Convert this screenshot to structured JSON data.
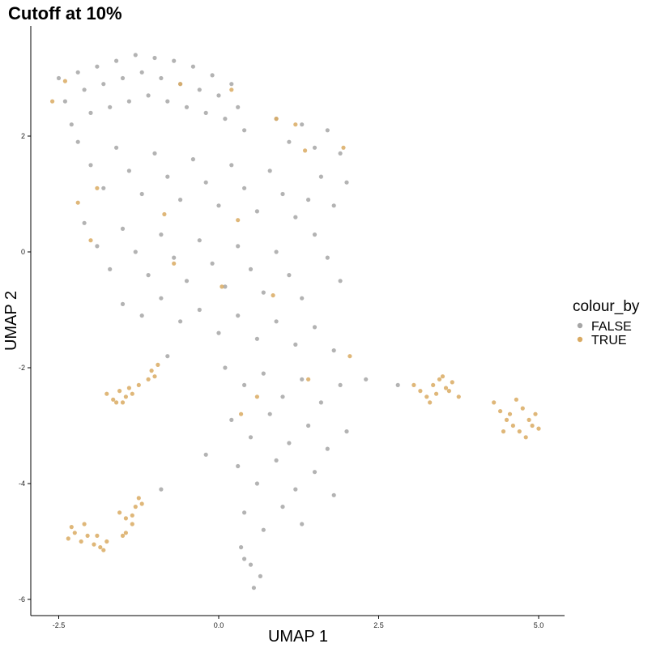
{
  "chart_data": {
    "type": "scatter",
    "title": "Cutoff at 10%",
    "xlabel": "UMAP 1",
    "ylabel": "UMAP 2",
    "xlim": [
      -3.0,
      5.4
    ],
    "ylim": [
      -6.3,
      3.9
    ],
    "x_ticks": [
      -2.5,
      0.0,
      2.5,
      5.0
    ],
    "x_tick_labels": [
      "-2.5",
      "0.0",
      "2.5",
      "5.0"
    ],
    "y_ticks": [
      2,
      0,
      -2,
      -4,
      -6
    ],
    "y_tick_labels": [
      "2",
      "0",
      "-2",
      "-4",
      "-6"
    ],
    "grid": false,
    "legend": {
      "title": "colour_by",
      "position": "right",
      "entries": [
        {
          "label": "FALSE",
          "color": "#a6a6a6"
        },
        {
          "label": "TRUE",
          "color": "#d9aa62"
        }
      ]
    },
    "series": [
      {
        "name": "FALSE",
        "color": "#a6a6a6",
        "points": [
          [
            -2.5,
            3.0
          ],
          [
            -2.4,
            2.6
          ],
          [
            -2.3,
            2.2
          ],
          [
            -2.2,
            3.1
          ],
          [
            -2.1,
            2.8
          ],
          [
            -2.0,
            2.4
          ],
          [
            -1.9,
            3.2
          ],
          [
            -1.8,
            2.9
          ],
          [
            -1.7,
            2.5
          ],
          [
            -1.6,
            3.3
          ],
          [
            -1.5,
            3.0
          ],
          [
            -1.4,
            2.6
          ],
          [
            -1.3,
            3.4
          ],
          [
            -1.2,
            3.1
          ],
          [
            -1.1,
            2.7
          ],
          [
            -1.0,
            3.35
          ],
          [
            -0.9,
            3.0
          ],
          [
            -0.8,
            2.6
          ],
          [
            -0.7,
            3.3
          ],
          [
            -0.6,
            2.9
          ],
          [
            -0.5,
            2.5
          ],
          [
            -0.4,
            3.2
          ],
          [
            -0.3,
            2.8
          ],
          [
            -0.2,
            2.4
          ],
          [
            -0.1,
            3.05
          ],
          [
            0.0,
            2.7
          ],
          [
            0.1,
            2.3
          ],
          [
            0.2,
            2.9
          ],
          [
            0.3,
            2.5
          ],
          [
            0.4,
            2.1
          ],
          [
            -2.2,
            1.9
          ],
          [
            -2.0,
            1.5
          ],
          [
            -1.8,
            1.1
          ],
          [
            -1.6,
            1.8
          ],
          [
            -1.4,
            1.4
          ],
          [
            -1.2,
            1.0
          ],
          [
            -1.0,
            1.7
          ],
          [
            -0.8,
            1.3
          ],
          [
            -0.6,
            0.9
          ],
          [
            -0.4,
            1.6
          ],
          [
            -0.2,
            1.2
          ],
          [
            0.0,
            0.8
          ],
          [
            0.2,
            1.5
          ],
          [
            0.4,
            1.1
          ],
          [
            0.6,
            0.7
          ],
          [
            0.8,
            1.4
          ],
          [
            1.0,
            1.0
          ],
          [
            1.2,
            0.6
          ],
          [
            -2.1,
            0.5
          ],
          [
            -1.9,
            0.1
          ],
          [
            -1.7,
            -0.3
          ],
          [
            -1.5,
            0.4
          ],
          [
            -1.3,
            0.0
          ],
          [
            -1.1,
            -0.4
          ],
          [
            -0.9,
            0.3
          ],
          [
            -0.7,
            -0.1
          ],
          [
            -0.5,
            -0.5
          ],
          [
            -0.3,
            0.2
          ],
          [
            -0.1,
            -0.2
          ],
          [
            0.1,
            -0.6
          ],
          [
            0.3,
            0.1
          ],
          [
            0.5,
            -0.3
          ],
          [
            0.7,
            -0.7
          ],
          [
            0.9,
            0.0
          ],
          [
            1.1,
            -0.4
          ],
          [
            1.3,
            -0.8
          ],
          [
            1.5,
            0.3
          ],
          [
            1.7,
            -0.1
          ],
          [
            1.9,
            -0.5
          ],
          [
            0.9,
            2.3
          ],
          [
            1.1,
            1.9
          ],
          [
            1.3,
            2.2
          ],
          [
            1.5,
            1.8
          ],
          [
            1.7,
            2.1
          ],
          [
            1.9,
            1.7
          ],
          [
            2.0,
            1.2
          ],
          [
            1.8,
            0.8
          ],
          [
            1.6,
            1.3
          ],
          [
            1.4,
            0.9
          ],
          [
            -1.5,
            -0.9
          ],
          [
            -1.2,
            -1.1
          ],
          [
            -0.9,
            -0.8
          ],
          [
            -0.6,
            -1.2
          ],
          [
            -0.3,
            -1.0
          ],
          [
            0.0,
            -1.4
          ],
          [
            0.3,
            -1.1
          ],
          [
            0.6,
            -1.5
          ],
          [
            0.9,
            -1.2
          ],
          [
            1.2,
            -1.6
          ],
          [
            1.5,
            -1.3
          ],
          [
            1.8,
            -1.7
          ],
          [
            0.1,
            -2.0
          ],
          [
            0.4,
            -2.3
          ],
          [
            0.7,
            -2.1
          ],
          [
            1.0,
            -2.5
          ],
          [
            1.3,
            -2.2
          ],
          [
            1.6,
            -2.6
          ],
          [
            1.9,
            -2.3
          ],
          [
            0.2,
            -2.9
          ],
          [
            0.5,
            -3.2
          ],
          [
            0.8,
            -2.8
          ],
          [
            1.1,
            -3.3
          ],
          [
            1.4,
            -3.0
          ],
          [
            1.7,
            -3.4
          ],
          [
            2.0,
            -3.1
          ],
          [
            0.3,
            -3.7
          ],
          [
            0.6,
            -4.0
          ],
          [
            0.9,
            -3.6
          ],
          [
            1.2,
            -4.1
          ],
          [
            1.5,
            -3.8
          ],
          [
            1.8,
            -4.2
          ],
          [
            0.4,
            -4.5
          ],
          [
            0.7,
            -4.8
          ],
          [
            1.0,
            -4.4
          ],
          [
            1.3,
            -4.7
          ],
          [
            0.35,
            -5.1
          ],
          [
            0.5,
            -5.4
          ],
          [
            0.65,
            -5.6
          ],
          [
            0.55,
            -5.8
          ],
          [
            0.4,
            -5.3
          ],
          [
            -0.2,
            -3.5
          ],
          [
            2.3,
            -2.2
          ],
          [
            2.8,
            -2.3
          ],
          [
            -0.9,
            -4.1
          ],
          [
            -0.8,
            -1.8
          ]
        ]
      },
      {
        "name": "TRUE",
        "color": "#d9aa62",
        "points": [
          [
            -2.6,
            2.6
          ],
          [
            -2.4,
            2.95
          ],
          [
            -0.6,
            2.9
          ],
          [
            0.2,
            2.8
          ],
          [
            0.9,
            2.3
          ],
          [
            1.2,
            2.2
          ],
          [
            1.35,
            1.75
          ],
          [
            1.95,
            1.8
          ],
          [
            -1.9,
            1.1
          ],
          [
            -2.2,
            0.85
          ],
          [
            -0.85,
            0.65
          ],
          [
            0.3,
            0.55
          ],
          [
            -2.0,
            0.2
          ],
          [
            -0.7,
            -0.2
          ],
          [
            0.05,
            -0.6
          ],
          [
            0.85,
            -0.75
          ],
          [
            2.05,
            -1.8
          ],
          [
            0.6,
            -2.5
          ],
          [
            1.4,
            -2.2
          ],
          [
            0.35,
            -2.8
          ],
          [
            -1.75,
            -2.45
          ],
          [
            -1.65,
            -2.55
          ],
          [
            -1.55,
            -2.4
          ],
          [
            -1.45,
            -2.5
          ],
          [
            -1.35,
            -2.45
          ],
          [
            -1.6,
            -2.6
          ],
          [
            -1.5,
            -2.6
          ],
          [
            -1.4,
            -2.35
          ],
          [
            -1.25,
            -2.3
          ],
          [
            -1.05,
            -2.05
          ],
          [
            -1.0,
            -2.15
          ],
          [
            -0.95,
            -1.95
          ],
          [
            -1.1,
            -2.2
          ],
          [
            -2.35,
            -4.95
          ],
          [
            -2.25,
            -4.85
          ],
          [
            -2.15,
            -5.0
          ],
          [
            -2.05,
            -4.9
          ],
          [
            -1.95,
            -5.05
          ],
          [
            -1.85,
            -5.1
          ],
          [
            -1.75,
            -5.0
          ],
          [
            -2.3,
            -4.75
          ],
          [
            -2.1,
            -4.7
          ],
          [
            -1.9,
            -4.9
          ],
          [
            -1.8,
            -5.15
          ],
          [
            -1.55,
            -4.5
          ],
          [
            -1.45,
            -4.6
          ],
          [
            -1.35,
            -4.7
          ],
          [
            -1.45,
            -4.85
          ],
          [
            -1.3,
            -4.4
          ],
          [
            -1.25,
            -4.25
          ],
          [
            -1.2,
            -4.35
          ],
          [
            -1.35,
            -4.55
          ],
          [
            -1.5,
            -4.9
          ],
          [
            3.05,
            -2.3
          ],
          [
            3.15,
            -2.4
          ],
          [
            3.25,
            -2.5
          ],
          [
            3.35,
            -2.3
          ],
          [
            3.45,
            -2.2
          ],
          [
            3.55,
            -2.35
          ],
          [
            3.65,
            -2.25
          ],
          [
            3.4,
            -2.45
          ],
          [
            3.3,
            -2.6
          ],
          [
            3.5,
            -2.15
          ],
          [
            3.6,
            -2.4
          ],
          [
            3.75,
            -2.5
          ],
          [
            4.3,
            -2.6
          ],
          [
            4.4,
            -2.75
          ],
          [
            4.5,
            -2.9
          ],
          [
            4.6,
            -3.0
          ],
          [
            4.7,
            -3.1
          ],
          [
            4.8,
            -3.2
          ],
          [
            4.9,
            -3.0
          ],
          [
            5.0,
            -3.05
          ],
          [
            4.55,
            -2.8
          ],
          [
            4.65,
            -2.55
          ],
          [
            4.75,
            -2.7
          ],
          [
            4.85,
            -2.9
          ],
          [
            4.45,
            -3.1
          ],
          [
            4.95,
            -2.8
          ]
        ]
      }
    ]
  }
}
